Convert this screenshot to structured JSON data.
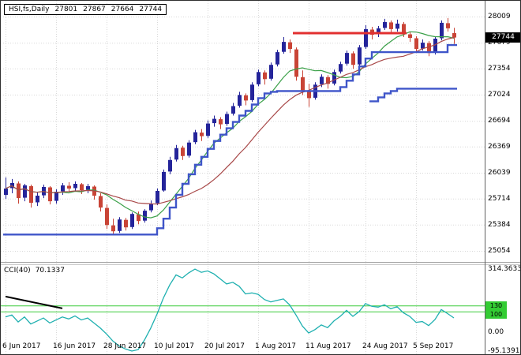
{
  "header": {
    "symbol": "HSI,fs,Daily",
    "open": "27801",
    "high": "27867",
    "low": "27664",
    "close": "27744"
  },
  "price_badge": "27744",
  "cci": {
    "label": "CCI(40)",
    "value": "70.1337"
  },
  "colors": {
    "bull": "#24249a",
    "bear": "#c94436",
    "ma_fast": "#3aa048",
    "ma_slow": "#a84848",
    "step_line": "#3f55c9",
    "resistance": "#e23030",
    "cci_line": "#1fb0b0",
    "level": "#3ccc3c",
    "grid": "#d8d8d8",
    "badge_bg": "#000000",
    "badge_text": "#ffffff",
    "level_badge_bg": "#33cc33",
    "level_badge_text": "#000000",
    "trendline": "#000000"
  },
  "chart_data": [
    {
      "type": "candlestick",
      "title": "HSI,fs,Daily",
      "ylim": [
        25054,
        28009
      ],
      "y_ticks": [
        28009,
        27679,
        27354,
        27024,
        26694,
        26369,
        26039,
        25714,
        25384,
        25054
      ],
      "x_tick_labels": [
        "6 Jun 2017",
        "16 Jun 2017",
        "28 Jun 2017",
        "10 Jul 2017",
        "20 Jul 2017",
        "1 Aug 2017",
        "11 Aug 2017",
        "24 Aug 2017",
        "5 Sep 2017"
      ],
      "x_tick_indices": [
        0,
        8,
        16,
        24,
        32,
        40,
        48,
        57,
        65
      ],
      "last": {
        "open": 27801,
        "high": 27867,
        "low": 27664,
        "close": 27744
      },
      "ohlc": [
        [
          25760,
          25980,
          25710,
          25840
        ],
        [
          25845,
          25960,
          25780,
          25910
        ],
        [
          25905,
          25930,
          25650,
          25720
        ],
        [
          25725,
          25900,
          25680,
          25880
        ],
        [
          25870,
          25890,
          25600,
          25660
        ],
        [
          25665,
          25800,
          25620,
          25750
        ],
        [
          25755,
          25890,
          25720,
          25860
        ],
        [
          25855,
          25870,
          25640,
          25680
        ],
        [
          25685,
          25830,
          25650,
          25800
        ],
        [
          25805,
          25910,
          25760,
          25880
        ],
        [
          25875,
          25920,
          25800,
          25840
        ],
        [
          25845,
          25930,
          25810,
          25900
        ],
        [
          25895,
          25910,
          25770,
          25820
        ],
        [
          25825,
          25900,
          25780,
          25870
        ],
        [
          25865,
          25880,
          25700,
          25750
        ],
        [
          25745,
          25780,
          25550,
          25600
        ],
        [
          25595,
          25640,
          25330,
          25380
        ],
        [
          25375,
          25460,
          25250,
          25300
        ],
        [
          25305,
          25480,
          25280,
          25450
        ],
        [
          25445,
          25470,
          25310,
          25350
        ],
        [
          25355,
          25540,
          25330,
          25520
        ],
        [
          25515,
          25550,
          25390,
          25430
        ],
        [
          25435,
          25580,
          25410,
          25560
        ],
        [
          25565,
          25690,
          25540,
          25650
        ],
        [
          25655,
          25840,
          25630,
          25810
        ],
        [
          25815,
          26080,
          25800,
          26050
        ],
        [
          26055,
          26240,
          26020,
          26200
        ],
        [
          26205,
          26390,
          26180,
          26350
        ],
        [
          26355,
          26380,
          26200,
          26250
        ],
        [
          26255,
          26450,
          26230,
          26420
        ],
        [
          26425,
          26580,
          26400,
          26550
        ],
        [
          26545,
          26590,
          26440,
          26500
        ],
        [
          26505,
          26700,
          26480,
          26660
        ],
        [
          26665,
          26760,
          26620,
          26720
        ],
        [
          26715,
          26740,
          26590,
          26650
        ],
        [
          26655,
          26810,
          26630,
          26780
        ],
        [
          26785,
          26920,
          26760,
          26880
        ],
        [
          26885,
          27060,
          26860,
          27020
        ],
        [
          27015,
          27040,
          26890,
          26950
        ],
        [
          26955,
          27180,
          26930,
          27150
        ],
        [
          27155,
          27340,
          27130,
          27310
        ],
        [
          27305,
          27330,
          27150,
          27220
        ],
        [
          27225,
          27430,
          27200,
          27400
        ],
        [
          27405,
          27590,
          27380,
          27560
        ],
        [
          27565,
          27750,
          27540,
          27690
        ],
        [
          27685,
          27720,
          27550,
          27600
        ],
        [
          27595,
          27620,
          27200,
          27250
        ],
        [
          27245,
          27330,
          27020,
          27080
        ],
        [
          27075,
          27160,
          26870,
          26980
        ],
        [
          26985,
          27180,
          26960,
          27150
        ],
        [
          27155,
          27280,
          27120,
          27250
        ],
        [
          27245,
          27270,
          27100,
          27160
        ],
        [
          27165,
          27340,
          27140,
          27310
        ],
        [
          27315,
          27440,
          27290,
          27410
        ],
        [
          27415,
          27580,
          27390,
          27550
        ],
        [
          27545,
          27570,
          27350,
          27400
        ],
        [
          27405,
          27650,
          27380,
          27620
        ],
        [
          27625,
          27900,
          27600,
          27850
        ],
        [
          27845,
          27880,
          27720,
          27780
        ],
        [
          27785,
          27890,
          27750,
          27860
        ],
        [
          27865,
          27980,
          27840,
          27940
        ],
        [
          27935,
          27960,
          27800,
          27850
        ],
        [
          27855,
          27970,
          27820,
          27920
        ],
        [
          27915,
          27940,
          27750,
          27790
        ],
        [
          27785,
          27820,
          27690,
          27740
        ],
        [
          27735,
          27760,
          27560,
          27600
        ],
        [
          27605,
          27720,
          27580,
          27680
        ],
        [
          27675,
          27700,
          27510,
          27550
        ],
        [
          27555,
          27760,
          27530,
          27730
        ],
        [
          27735,
          27960,
          27710,
          27930
        ],
        [
          27925,
          27990,
          27820,
          27860
        ],
        [
          27801,
          27867,
          27664,
          27744
        ]
      ],
      "overlays": {
        "ma_fast": {
          "period": 9
        },
        "ma_slow": {
          "period": 18
        },
        "step_line": {
          "points": [
            [
              0,
              25260
            ],
            [
              24,
              25340
            ],
            [
              25,
              25460
            ],
            [
              26,
              25600
            ],
            [
              27,
              25760
            ],
            [
              28,
              25900
            ],
            [
              29,
              26020
            ],
            [
              30,
              26140
            ],
            [
              31,
              26240
            ],
            [
              32,
              26340
            ],
            [
              33,
              26440
            ],
            [
              34,
              26520
            ],
            [
              35,
              26600
            ],
            [
              36,
              26680
            ],
            [
              37,
              26760
            ],
            [
              38,
              26820
            ],
            [
              39,
              26900
            ],
            [
              40,
              26980
            ],
            [
              41,
              27040
            ],
            [
              42,
              27060
            ],
            [
              43,
              27070
            ],
            [
              53,
              27120
            ],
            [
              54,
              27200
            ],
            [
              55,
              27280
            ],
            [
              56,
              27380
            ],
            [
              57,
              27480
            ],
            [
              58,
              27560
            ],
            [
              70,
              27650
            ],
            [
              71,
              27650
            ]
          ]
        },
        "step_line_2": {
          "points": [
            [
              58,
              26940
            ],
            [
              59,
              26990
            ],
            [
              60,
              27040
            ],
            [
              61,
              27070
            ],
            [
              62,
              27100
            ],
            [
              71,
              27100
            ]
          ]
        },
        "resistance_line": {
          "price": 27800,
          "from_index": 46,
          "to_index": 63
        }
      }
    },
    {
      "type": "line",
      "name": "CCI(40)",
      "current_value": 70.1337,
      "ylim": [
        -95.1391,
        314.3633
      ],
      "y_tick_labels": [
        "314.3633",
        "0.00",
        "-95.1391"
      ],
      "y_tick_values": [
        314.3633,
        0,
        -95.1391
      ],
      "levels": [
        {
          "label": "130",
          "value": 130
        },
        {
          "label": "100",
          "value": 100
        }
      ],
      "trendline": {
        "points": [
          [
            0,
            177
          ],
          [
            9,
            118
          ]
        ]
      },
      "values": [
        75,
        85,
        50,
        75,
        40,
        55,
        70,
        45,
        60,
        75,
        65,
        80,
        60,
        70,
        45,
        20,
        -10,
        -45,
        -70,
        -85,
        -95,
        -88,
        -40,
        20,
        90,
        170,
        235,
        285,
        270,
        295,
        314,
        298,
        305,
        290,
        265,
        240,
        248,
        228,
        190,
        195,
        188,
        162,
        150,
        158,
        165,
        135,
        85,
        30,
        -5,
        12,
        35,
        22,
        55,
        78,
        108,
        78,
        102,
        142,
        128,
        124,
        136,
        116,
        126,
        96,
        78,
        48,
        52,
        32,
        62,
        112,
        92,
        70.1337
      ]
    }
  ]
}
